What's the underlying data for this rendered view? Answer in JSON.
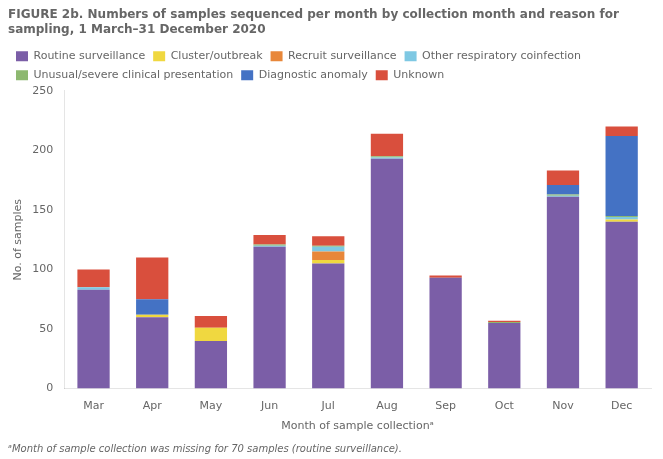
{
  "chart_data": {
    "type": "bar",
    "stacked": true,
    "title": "FIGURE 2b. Numbers of samples sequenced per month by collection month and reason for sampling, 1 March–31 December 2020",
    "annotations": [
      "ᵃMonth of sample collection was missing for 70 samples (routine surveillance)."
    ],
    "x_label": "Month of sample collectionᵃ",
    "y_label": "No. of samples",
    "categories": [
      "Mar",
      "Apr",
      "May",
      "Jun",
      "Jul",
      "Aug",
      "Sep",
      "Oct",
      "Nov",
      "Dec"
    ],
    "series": [
      {
        "name": "Routine surveillance",
        "color": "#7b5ea7",
        "values": [
          83,
          60,
          40,
          119,
          105,
          193,
          93,
          55,
          161,
          140
        ]
      },
      {
        "name": "Cluster/outbreak",
        "color": "#f0d840",
        "values": [
          0,
          2,
          11,
          0,
          3,
          0,
          0,
          0,
          0,
          2
        ]
      },
      {
        "name": "Recruit surveillance",
        "color": "#e8873a",
        "values": [
          0,
          0,
          0,
          0,
          7,
          0,
          0,
          0,
          0,
          0
        ]
      },
      {
        "name": "Other respiratory coinfection",
        "color": "#7ec8e3",
        "values": [
          2,
          0,
          0,
          1,
          4,
          1,
          0,
          0,
          1,
          2
        ]
      },
      {
        "name": "Unusual/severe clinical presentation",
        "color": "#8db870",
        "values": [
          0,
          0,
          0,
          1,
          1,
          1,
          0,
          1,
          1,
          1
        ]
      },
      {
        "name": "Diagnostic anomaly",
        "color": "#4472c4",
        "values": [
          0,
          13,
          0,
          0,
          0,
          0,
          0,
          0,
          8,
          67
        ]
      },
      {
        "name": "Unknown",
        "color": "#d94f3d",
        "values": [
          15,
          35,
          10,
          8,
          8,
          19,
          2,
          1,
          12,
          8
        ]
      }
    ],
    "ylim": [
      0,
      250
    ],
    "yticks": [
      0,
      50,
      100,
      150,
      200,
      250
    ],
    "grid": false,
    "legend": "upper left"
  }
}
